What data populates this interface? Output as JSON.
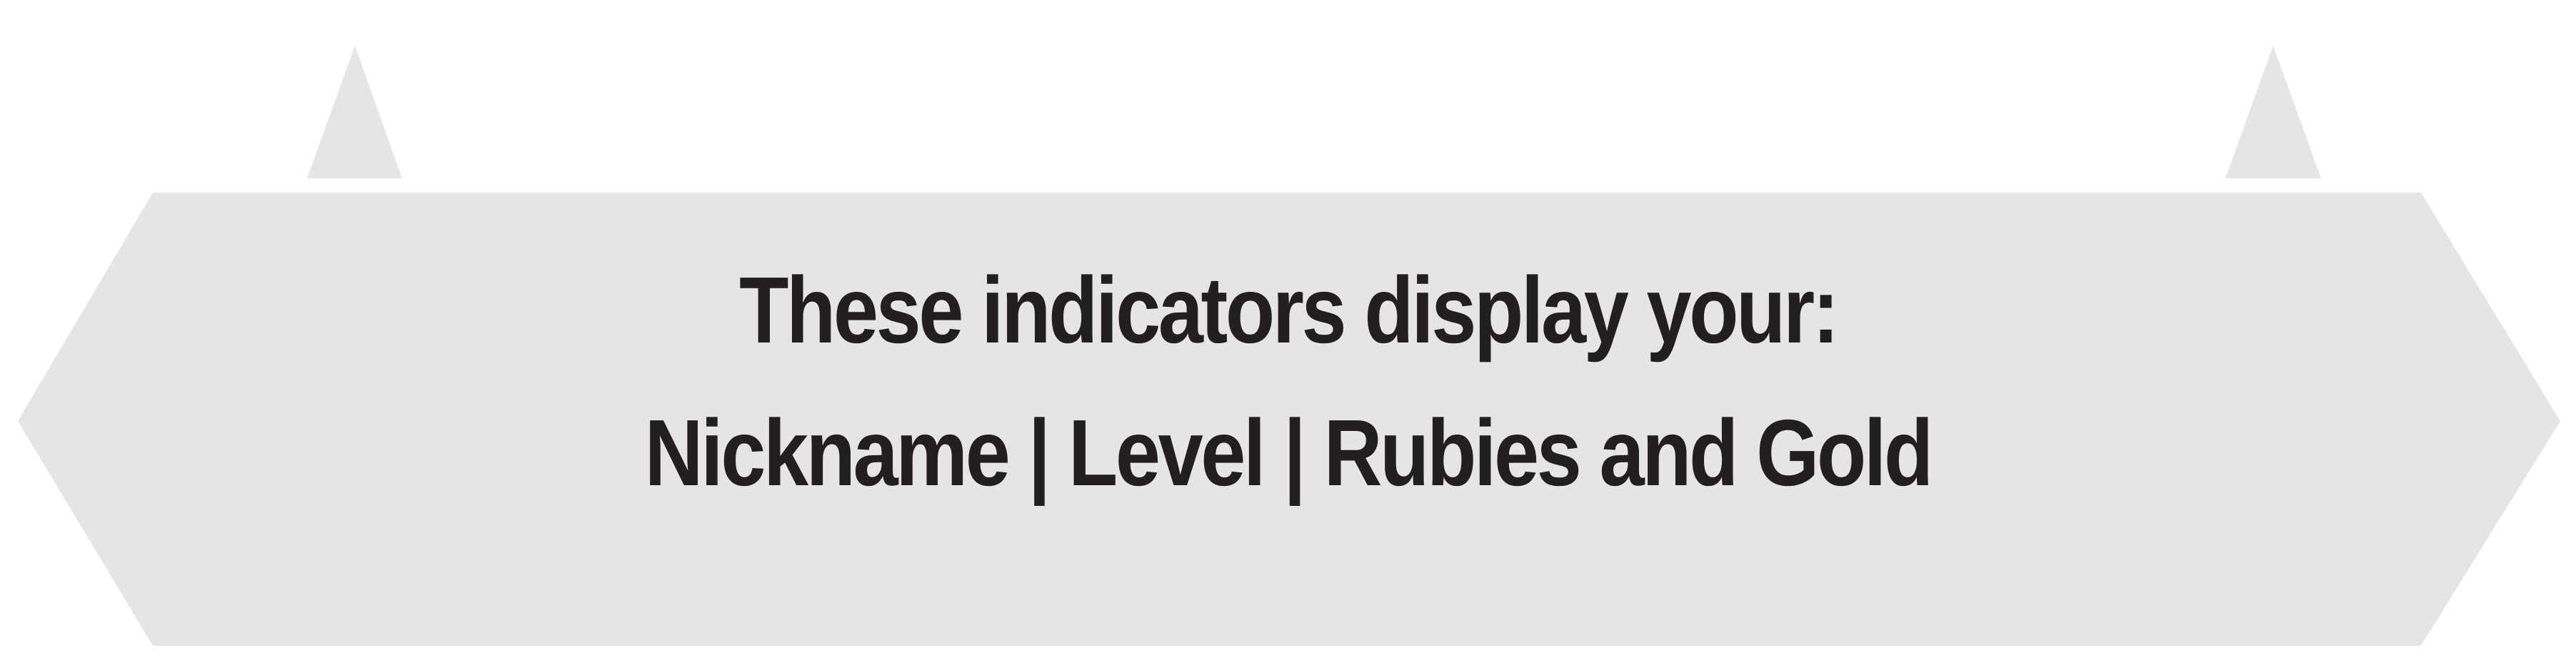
{
  "banner": {
    "line1": "These indicators display your:",
    "line2": "Nickname | Level | Rubies and Gold"
  },
  "colors": {
    "banner_fill": "#e5e5e5",
    "text": "#231f20",
    "background": "#ffffff"
  },
  "icons": {
    "left_marker": "triangle-pointer-icon",
    "right_marker": "triangle-pointer-icon"
  }
}
